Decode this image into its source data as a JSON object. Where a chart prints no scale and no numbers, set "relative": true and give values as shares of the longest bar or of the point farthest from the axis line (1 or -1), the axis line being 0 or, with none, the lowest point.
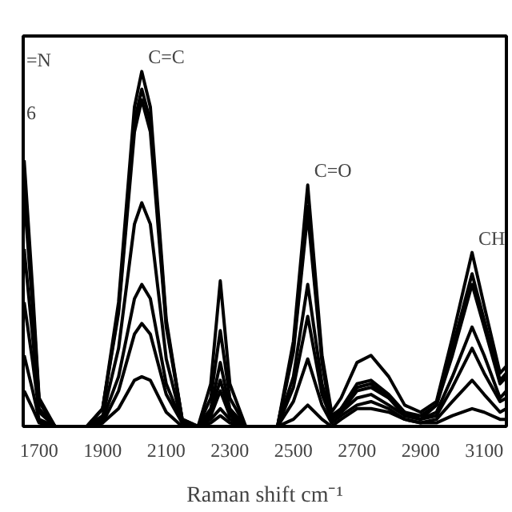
{
  "chart_data": {
    "type": "line",
    "relative": true,
    "xlabel": "Raman shift cm⁻¹",
    "x": [
      1653,
      1680,
      1700,
      1750,
      1850,
      1900,
      1950,
      2000,
      2023,
      2050,
      2100,
      2150,
      2200,
      2240,
      2270,
      2300,
      2350,
      2450,
      2500,
      2545,
      2590,
      2620,
      2650,
      2700,
      2744,
      2800,
      2850,
      2900,
      2950,
      3000,
      3062,
      3100,
      3150,
      3170
    ],
    "xlim": [
      1650,
      3170
    ],
    "xticks": [
      1700,
      1900,
      2100,
      2300,
      2500,
      2700,
      2900,
      3100
    ],
    "grid": false,
    "marker": "none",
    "line_style": "solid",
    "series": [
      {
        "color": "#000000",
        "values": [
          0.75,
          0.38,
          0.08,
          0,
          0,
          0.05,
          0.35,
          0.9,
          1,
          0.9,
          0.3,
          0.02,
          0,
          0.12,
          0.41,
          0.12,
          0,
          0,
          0.24,
          0.68,
          0.2,
          0.04,
          0.08,
          0.18,
          0.2,
          0.14,
          0.06,
          0.04,
          0.07,
          0.25,
          0.49,
          0.34,
          0.15,
          0.17
        ]
      },
      {
        "color": "#000000",
        "values": [
          0.7,
          0.35,
          0.07,
          0,
          0,
          0.05,
          0.33,
          0.86,
          0.95,
          0.86,
          0.29,
          0.02,
          0,
          0.08,
          0.27,
          0.08,
          0,
          0,
          0.22,
          0.62,
          0.19,
          0.03,
          0.05,
          0.12,
          0.13,
          0.09,
          0.04,
          0.03,
          0.06,
          0.22,
          0.43,
          0.3,
          0.13,
          0.15
        ]
      },
      {
        "color": "#000000",
        "values": [
          0.65,
          0.33,
          0.07,
          0,
          0,
          0.05,
          0.32,
          0.83,
          0.92,
          0.83,
          0.28,
          0.02,
          0,
          0.05,
          0.18,
          0.05,
          0,
          0,
          0.21,
          0.6,
          0.18,
          0.02,
          0.05,
          0.11,
          0.12,
          0.08,
          0.04,
          0.02,
          0.06,
          0.2,
          0.4,
          0.28,
          0.12,
          0.14
        ]
      },
      {
        "color": "#000000",
        "values": [
          0.5,
          0.25,
          0.05,
          0,
          0,
          0.03,
          0.22,
          0.57,
          0.63,
          0.57,
          0.19,
          0.01,
          0,
          0.04,
          0.13,
          0.04,
          0,
          0,
          0.14,
          0.4,
          0.12,
          0.02,
          0.04,
          0.1,
          0.11,
          0.08,
          0.03,
          0.02,
          0.04,
          0.14,
          0.28,
          0.2,
          0.08,
          0.1
        ]
      },
      {
        "color": "#000000",
        "values": [
          0.35,
          0.18,
          0.04,
          0,
          0,
          0.02,
          0.14,
          0.36,
          0.4,
          0.36,
          0.12,
          0.01,
          0,
          0.03,
          0.1,
          0.03,
          0,
          0,
          0.11,
          0.31,
          0.09,
          0.02,
          0.04,
          0.08,
          0.09,
          0.06,
          0.03,
          0.02,
          0.03,
          0.11,
          0.22,
          0.15,
          0.07,
          0.08
        ]
      },
      {
        "color": "#000000",
        "values": [
          0.2,
          0.1,
          0.02,
          0,
          0,
          0.01,
          0.1,
          0.26,
          0.29,
          0.26,
          0.09,
          0.01,
          0,
          0.02,
          0.05,
          0.02,
          0,
          0,
          0.07,
          0.19,
          0.06,
          0.01,
          0.03,
          0.06,
          0.07,
          0.05,
          0.02,
          0.01,
          0.02,
          0.07,
          0.13,
          0.09,
          0.04,
          0.05
        ]
      },
      {
        "color": "#000000",
        "values": [
          0.1,
          0.05,
          0.01,
          0,
          0,
          0.01,
          0.05,
          0.13,
          0.14,
          0.13,
          0.04,
          0,
          0,
          0.01,
          0.03,
          0.01,
          0,
          0,
          0.02,
          0.06,
          0.02,
          0,
          0.02,
          0.05,
          0.05,
          0.04,
          0.02,
          0.01,
          0.01,
          0.03,
          0.05,
          0.04,
          0.02,
          0.02
        ]
      }
    ],
    "annotations": [
      "=N",
      "6",
      {
        "text": "C=C",
        "x": 2023,
        "y": 1.0
      },
      {
        "text": "C=O",
        "x": 2545,
        "y": 0.68
      },
      {
        "text": "CH",
        "x": 3062,
        "y": 0.49
      }
    ]
  }
}
